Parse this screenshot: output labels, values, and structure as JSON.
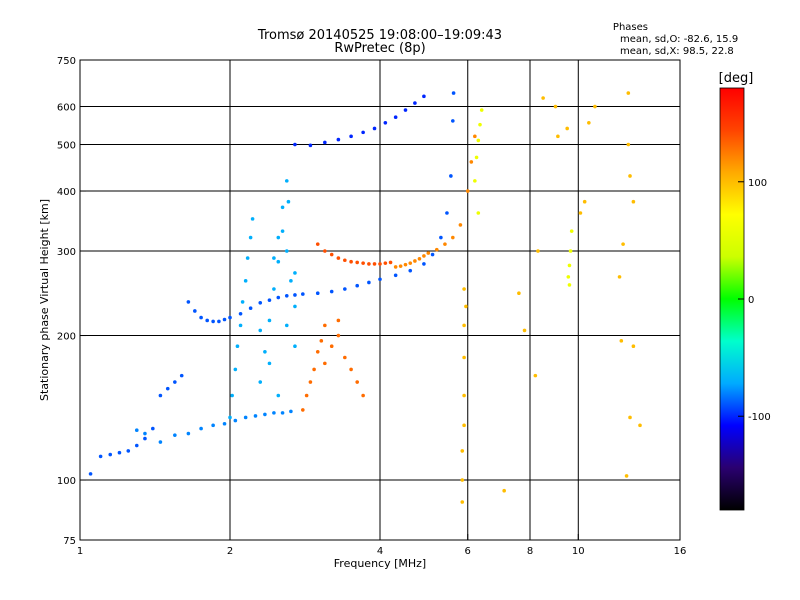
{
  "chart_data": {
    "type": "scatter",
    "title": "Tromsø 20140525 19:08:00–19:09:43",
    "subtitle": "RwPretec (8p)",
    "xlabel": "Frequency [MHz]",
    "ylabel": "Stationary phase Virtual Height [km]",
    "x_scale": "log",
    "y_scale": "log",
    "xlim": [
      1,
      16
    ],
    "ylim": [
      75,
      750
    ],
    "x_ticks": [
      1,
      2,
      4,
      6,
      8,
      10,
      16
    ],
    "y_ticks": [
      75,
      100,
      200,
      300,
      400,
      500,
      600,
      750
    ],
    "grid": true,
    "phase_legend": {
      "heading": "Phases",
      "o_text": "mean, sd,O: -82.6, 15.9",
      "x_text": "mean, sd,X:  98.5, 22.8"
    },
    "colorbar": {
      "label": "[deg]",
      "ticks": [
        "100",
        "0",
        "-100"
      ],
      "tick_values": [
        100,
        0,
        -100
      ],
      "range": [
        -180,
        180
      ],
      "colormap": "rainbow",
      "colors": [
        "#000000",
        "#2a0070",
        "#0000ff",
        "#00aaff",
        "#00ffcc",
        "#00ff00",
        "#ccff00",
        "#ffff00",
        "#ffaa00",
        "#ff4400",
        "#ff0000"
      ]
    },
    "series": [
      {
        "mode": "O",
        "color_phase": -90,
        "points": [
          [
            1.05,
            103
          ],
          [
            1.1,
            112
          ],
          [
            1.15,
            113
          ],
          [
            1.2,
            114
          ],
          [
            1.25,
            115
          ],
          [
            1.3,
            118
          ],
          [
            1.35,
            122
          ],
          [
            1.4,
            128
          ],
          [
            1.45,
            150
          ],
          [
            1.5,
            155
          ],
          [
            1.55,
            160
          ],
          [
            1.6,
            165
          ],
          [
            1.65,
            235
          ],
          [
            1.7,
            225
          ],
          [
            1.75,
            218
          ],
          [
            1.8,
            215
          ],
          [
            1.85,
            214
          ],
          [
            1.9,
            214
          ],
          [
            1.95,
            216
          ],
          [
            2.0,
            218
          ],
          [
            2.1,
            222
          ],
          [
            2.2,
            228
          ],
          [
            2.3,
            234
          ],
          [
            2.4,
            237
          ],
          [
            2.5,
            240
          ],
          [
            2.6,
            242
          ],
          [
            2.7,
            243
          ],
          [
            2.8,
            244
          ],
          [
            3.0,
            245
          ],
          [
            3.2,
            247
          ],
          [
            3.4,
            250
          ],
          [
            3.6,
            254
          ],
          [
            3.8,
            258
          ],
          [
            4.0,
            262
          ],
          [
            4.3,
            267
          ],
          [
            4.6,
            273
          ],
          [
            4.9,
            282
          ],
          [
            5.1,
            295
          ],
          [
            5.3,
            320
          ],
          [
            5.45,
            360
          ],
          [
            5.55,
            430
          ],
          [
            5.6,
            560
          ],
          [
            5.62,
            640
          ]
        ]
      },
      {
        "mode": "O",
        "color_phase": -100,
        "points": [
          [
            2.7,
            500
          ],
          [
            2.9,
            498
          ],
          [
            3.1,
            505
          ],
          [
            3.3,
            512
          ],
          [
            3.5,
            520
          ],
          [
            3.7,
            530
          ],
          [
            3.9,
            540
          ],
          [
            4.1,
            555
          ],
          [
            4.3,
            570
          ],
          [
            4.5,
            590
          ],
          [
            4.7,
            610
          ],
          [
            4.9,
            630
          ]
        ]
      },
      {
        "mode": "O",
        "color_phase": -80,
        "points": [
          [
            1.3,
            127
          ],
          [
            1.35,
            125
          ],
          [
            1.45,
            120
          ],
          [
            1.55,
            124
          ],
          [
            1.65,
            125
          ],
          [
            1.75,
            128
          ],
          [
            1.85,
            130
          ],
          [
            1.95,
            131
          ],
          [
            2.05,
            133
          ],
          [
            2.15,
            135
          ],
          [
            2.25,
            136
          ],
          [
            2.35,
            137
          ],
          [
            2.45,
            138
          ],
          [
            2.55,
            138
          ],
          [
            2.65,
            139
          ]
        ]
      },
      {
        "mode": "O",
        "color_phase": -70,
        "points": [
          [
            2.0,
            135
          ],
          [
            2.02,
            150
          ],
          [
            2.05,
            170
          ],
          [
            2.07,
            190
          ],
          [
            2.1,
            210
          ],
          [
            2.12,
            235
          ],
          [
            2.15,
            260
          ],
          [
            2.17,
            290
          ],
          [
            2.2,
            320
          ],
          [
            2.22,
            350
          ],
          [
            2.3,
            160
          ],
          [
            2.35,
            185
          ],
          [
            2.4,
            215
          ],
          [
            2.45,
            250
          ],
          [
            2.5,
            285
          ],
          [
            2.55,
            330
          ],
          [
            2.6,
            300
          ],
          [
            2.65,
            260
          ],
          [
            2.3,
            205
          ],
          [
            2.4,
            175
          ],
          [
            2.5,
            150
          ],
          [
            2.6,
            210
          ],
          [
            2.55,
            370
          ],
          [
            2.5,
            320
          ],
          [
            2.45,
            290
          ],
          [
            2.6,
            420
          ],
          [
            2.62,
            380
          ],
          [
            2.7,
            190
          ],
          [
            2.7,
            230
          ],
          [
            2.7,
            270
          ]
        ]
      },
      {
        "mode": "X",
        "color_phase": 140,
        "points": [
          [
            3.0,
            310
          ],
          [
            3.1,
            300
          ],
          [
            3.2,
            295
          ],
          [
            3.3,
            290
          ],
          [
            3.4,
            287
          ],
          [
            3.5,
            285
          ],
          [
            3.6,
            284
          ],
          [
            3.7,
            283
          ],
          [
            3.8,
            282
          ],
          [
            3.9,
            282
          ],
          [
            4.0,
            282
          ],
          [
            4.1,
            283
          ],
          [
            4.2,
            284
          ]
        ]
      },
      {
        "mode": "X",
        "color_phase": 120,
        "points": [
          [
            4.3,
            278
          ],
          [
            4.4,
            279
          ],
          [
            4.5,
            281
          ],
          [
            4.6,
            283
          ],
          [
            4.7,
            286
          ],
          [
            4.8,
            289
          ],
          [
            4.9,
            293
          ],
          [
            5.0,
            297
          ],
          [
            5.2,
            302
          ],
          [
            5.4,
            310
          ],
          [
            5.6,
            320
          ],
          [
            5.8,
            340
          ],
          [
            6.0,
            400
          ],
          [
            6.1,
            460
          ],
          [
            6.2,
            520
          ]
        ]
      },
      {
        "mode": "X",
        "color_phase": 130,
        "points": [
          [
            2.8,
            140
          ],
          [
            2.85,
            150
          ],
          [
            2.9,
            160
          ],
          [
            2.95,
            170
          ],
          [
            3.0,
            185
          ],
          [
            3.05,
            195
          ],
          [
            3.1,
            210
          ],
          [
            3.2,
            190
          ],
          [
            3.3,
            200
          ],
          [
            3.4,
            180
          ],
          [
            3.5,
            170
          ],
          [
            3.6,
            160
          ],
          [
            3.7,
            150
          ],
          [
            3.3,
            215
          ],
          [
            3.1,
            175
          ]
        ]
      },
      {
        "mode": "X",
        "color_phase": 60,
        "points": [
          [
            6.2,
            420
          ],
          [
            6.25,
            470
          ],
          [
            6.3,
            510
          ],
          [
            6.35,
            550
          ],
          [
            6.4,
            590
          ],
          [
            6.3,
            360
          ],
          [
            9.6,
            255
          ],
          [
            9.6,
            280
          ],
          [
            9.65,
            300
          ],
          [
            9.7,
            330
          ],
          [
            9.55,
            265
          ]
        ]
      },
      {
        "mode": "scatter",
        "color_phase": 100,
        "points": [
          [
            5.85,
            90
          ],
          [
            5.85,
            100
          ],
          [
            5.85,
            115
          ],
          [
            5.9,
            130
          ],
          [
            5.9,
            150
          ],
          [
            5.9,
            180
          ],
          [
            5.9,
            210
          ],
          [
            5.95,
            230
          ],
          [
            5.9,
            250
          ],
          [
            7.1,
            95
          ],
          [
            7.6,
            245
          ],
          [
            7.8,
            205
          ],
          [
            8.2,
            165
          ],
          [
            8.3,
            300
          ],
          [
            8.5,
            625
          ],
          [
            9.0,
            600
          ],
          [
            9.1,
            520
          ],
          [
            9.5,
            540
          ],
          [
            10.5,
            555
          ],
          [
            10.8,
            600
          ],
          [
            12.6,
            640
          ],
          [
            12.6,
            500
          ],
          [
            12.7,
            430
          ],
          [
            12.9,
            380
          ],
          [
            12.3,
            310
          ],
          [
            12.1,
            265
          ],
          [
            12.2,
            195
          ],
          [
            12.9,
            190
          ],
          [
            12.7,
            135
          ],
          [
            12.5,
            102
          ],
          [
            13.3,
            130
          ],
          [
            10.3,
            380
          ],
          [
            10.1,
            360
          ]
        ]
      }
    ]
  }
}
